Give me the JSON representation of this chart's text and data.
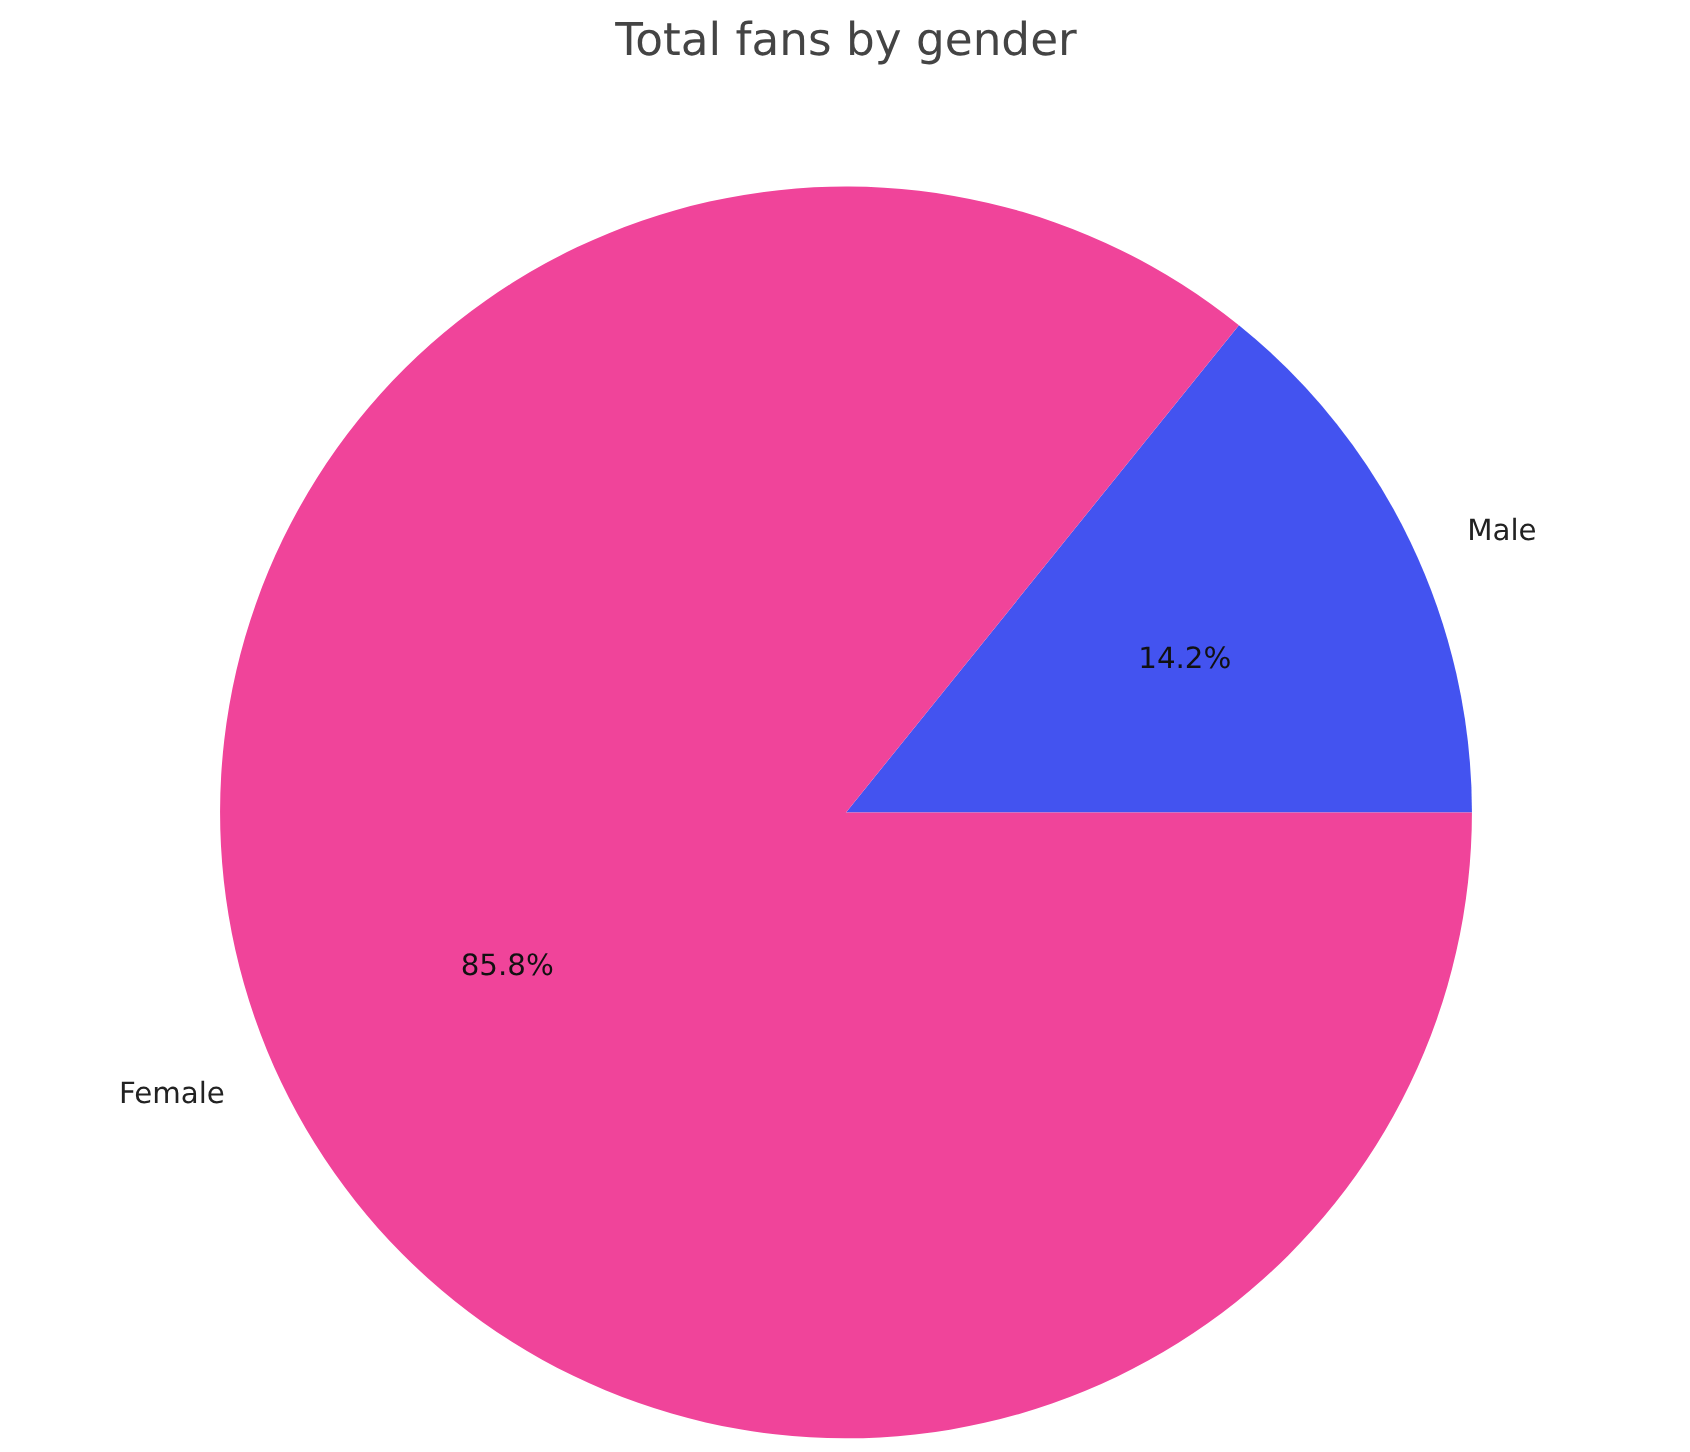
{
  "chart_data": {
    "type": "pie",
    "title": "Total fans by gender",
    "categories": [
      "Male",
      "Female"
    ],
    "values": [
      14.2,
      85.8
    ],
    "colors": [
      "#4353f0",
      "#f0449a"
    ],
    "value_labels": [
      "14.2%",
      "85.8%"
    ]
  }
}
